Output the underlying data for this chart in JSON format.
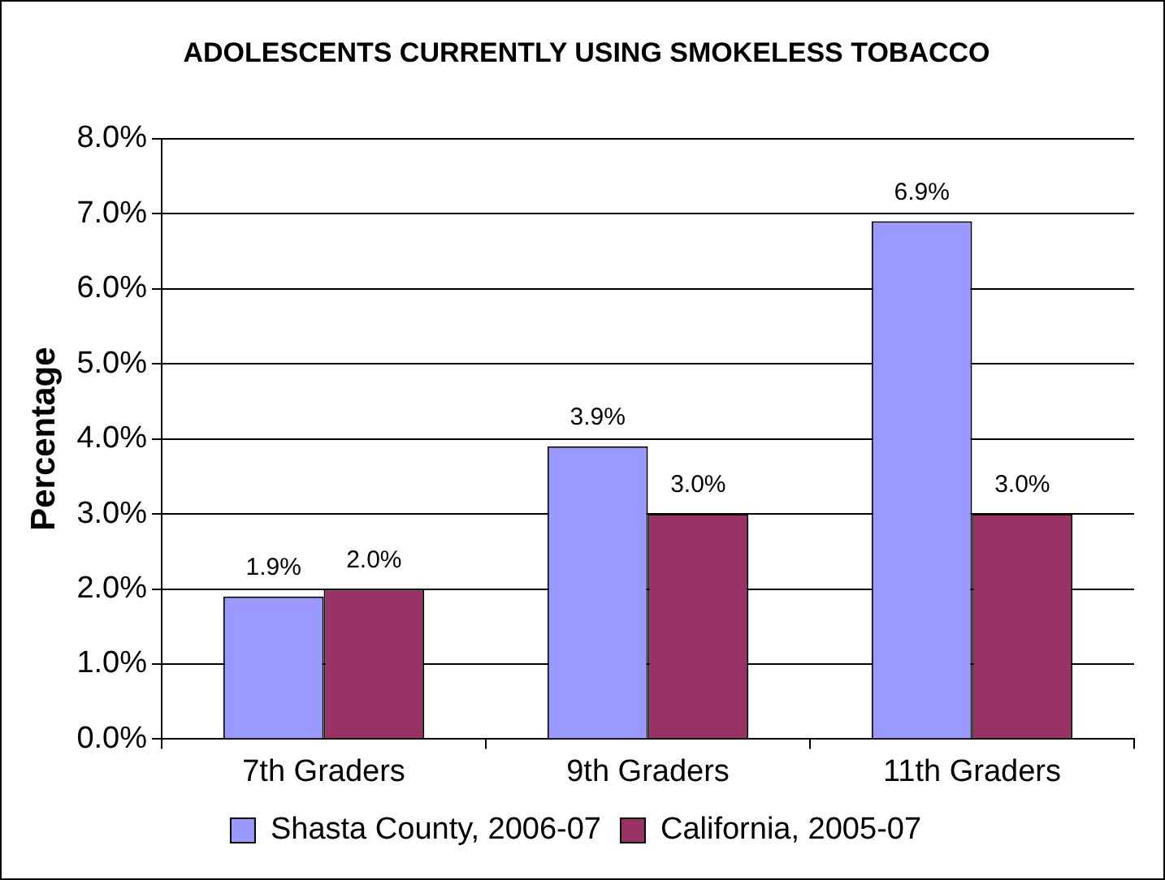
{
  "chart_data": {
    "type": "bar",
    "title": "ADOLESCENTS CURRENTLY USING SMOKELESS TOBACCO",
    "ylabel": "Percentage",
    "categories": [
      "7th Graders",
      "9th Graders",
      "11th Graders"
    ],
    "series": [
      {
        "name": "Shasta County, 2006-07",
        "color": "#9999ff",
        "values": [
          1.9,
          3.9,
          6.9
        ],
        "value_labels": [
          "1.9%",
          "3.9%",
          "6.9%"
        ]
      },
      {
        "name": "California, 2005-07",
        "color": "#993366",
        "values": [
          2.0,
          3.0,
          3.0
        ],
        "value_labels": [
          "2.0%",
          "3.0%",
          "3.0%"
        ]
      }
    ],
    "ylim": [
      0,
      8
    ],
    "yticks": [
      {
        "value": 0,
        "label": "0.0%"
      },
      {
        "value": 1,
        "label": "1.0%"
      },
      {
        "value": 2,
        "label": "2.0%"
      },
      {
        "value": 3,
        "label": "3.0%"
      },
      {
        "value": 4,
        "label": "4.0%"
      },
      {
        "value": 5,
        "label": "5.0%"
      },
      {
        "value": 6,
        "label": "6.0%"
      },
      {
        "value": 7,
        "label": "7.0%"
      },
      {
        "value": 8,
        "label": "8.0%"
      }
    ],
    "grid": "y",
    "legend": "bottom"
  }
}
